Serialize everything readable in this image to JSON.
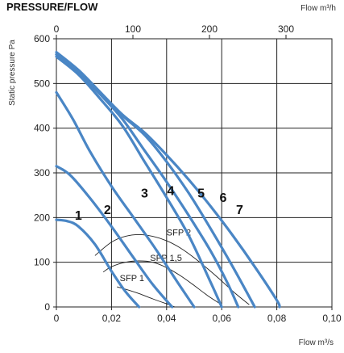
{
  "chart_data": {
    "type": "line",
    "title": "PRESSURE/FLOW",
    "xlabel": "Flow m³/s",
    "x2label": "Flow m³/h",
    "ylabel": "Static pressure Pa",
    "xlim": [
      0,
      0.1
    ],
    "ylim": [
      0,
      600
    ],
    "x2lim": [
      0,
      360
    ],
    "xticks": [
      "0",
      "0,02",
      "0,04",
      "0,06",
      "0,08",
      "0,10"
    ],
    "x2ticks": [
      "0",
      "100",
      "200",
      "300"
    ],
    "yticks": [
      "0",
      "100",
      "200",
      "300",
      "400",
      "500",
      "600"
    ],
    "grid": true,
    "series_color": "#4a86c5",
    "sfp_color": "#222222",
    "series": [
      {
        "name": "1",
        "label_at": [
          0.008,
          195
        ],
        "x": [
          0,
          0.004,
          0.008,
          0.014,
          0.02,
          0.025,
          0.03
        ],
        "y": [
          195,
          192,
          180,
          140,
          80,
          35,
          0
        ]
      },
      {
        "name": "2",
        "label_at": [
          0.0185,
          208
        ],
        "x": [
          0,
          0.005,
          0.012,
          0.02,
          0.028,
          0.035,
          0.042
        ],
        "y": [
          315,
          295,
          245,
          180,
          110,
          50,
          0
        ]
      },
      {
        "name": "3",
        "label_at": [
          0.032,
          245
        ],
        "x": [
          0,
          0.006,
          0.012,
          0.02,
          0.028,
          0.036,
          0.044,
          0.05
        ],
        "y": [
          480,
          420,
          350,
          270,
          200,
          130,
          55,
          0
        ]
      },
      {
        "name": "4",
        "label_at": [
          0.0415,
          250
        ],
        "x": [
          0,
          0.008,
          0.016,
          0.024,
          0.032,
          0.04,
          0.048,
          0.056,
          0.06
        ],
        "y": [
          560,
          520,
          465,
          405,
          325,
          245,
          160,
          55,
          0
        ]
      },
      {
        "name": "5",
        "label_at": [
          0.0525,
          245
        ],
        "x": [
          0,
          0.008,
          0.016,
          0.024,
          0.032,
          0.04,
          0.048,
          0.056,
          0.062,
          0.066
        ],
        "y": [
          565,
          525,
          475,
          420,
          350,
          280,
          205,
          125,
          55,
          0
        ]
      },
      {
        "name": "6",
        "label_at": [
          0.0605,
          235
        ],
        "x": [
          0,
          0.008,
          0.016,
          0.024,
          0.032,
          0.04,
          0.048,
          0.056,
          0.064,
          0.072
        ],
        "y": [
          565,
          528,
          478,
          428,
          385,
          325,
          255,
          175,
          90,
          0
        ]
      },
      {
        "name": "7",
        "label_at": [
          0.0665,
          208
        ],
        "x": [
          0,
          0.008,
          0.016,
          0.024,
          0.032,
          0.04,
          0.048,
          0.056,
          0.064,
          0.072,
          0.08,
          0.081
        ],
        "y": [
          570,
          530,
          480,
          430,
          390,
          340,
          285,
          225,
          160,
          90,
          15,
          0
        ]
      }
    ],
    "sfp_curves": [
      {
        "name": "SFP 2",
        "label_at": [
          0.04,
          160
        ],
        "x": [
          0.014,
          0.02,
          0.025,
          0.03,
          0.035,
          0.04,
          0.045,
          0.05,
          0.055,
          0.06,
          0.065,
          0.07
        ],
        "y": [
          115,
          145,
          158,
          162,
          158,
          148,
          132,
          110,
          85,
          58,
          30,
          5
        ]
      },
      {
        "name": "SFP 1,5",
        "label_at": [
          0.034,
          103
        ],
        "x": [
          0.017,
          0.02,
          0.025,
          0.03,
          0.035,
          0.04,
          0.045,
          0.05,
          0.055,
          0.06
        ],
        "y": [
          78,
          90,
          100,
          103,
          100,
          88,
          70,
          48,
          25,
          5
        ]
      },
      {
        "name": "SFP 1",
        "label_at": [
          0.023,
          58
        ],
        "x": [
          0.022,
          0.025,
          0.03,
          0.035,
          0.04,
          0.043
        ],
        "y": [
          45,
          40,
          30,
          18,
          7,
          0
        ]
      }
    ]
  }
}
